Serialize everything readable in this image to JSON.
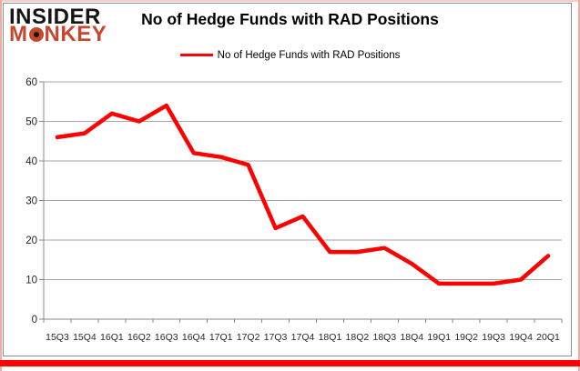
{
  "logo": {
    "insider": "INSIDER",
    "monkey": "MONKEY"
  },
  "header": {
    "title": "No of Hedge Funds with RAD Positions"
  },
  "legend": {
    "label": "No of Hedge Funds with RAD Positions",
    "marker_color": "#fe0000"
  },
  "chart_data": {
    "type": "line",
    "title": "No of Hedge Funds with RAD Positions",
    "categories": [
      "15Q3",
      "15Q4",
      "16Q1",
      "16Q2",
      "16Q3",
      "16Q4",
      "17Q1",
      "17Q2",
      "17Q3",
      "17Q4",
      "18Q1",
      "18Q2",
      "18Q3",
      "18Q4",
      "19Q1",
      "19Q2",
      "19Q3",
      "19Q4",
      "20Q1"
    ],
    "series": [
      {
        "name": "No of Hedge Funds with RAD Positions",
        "color": "#fe0000",
        "values": [
          46,
          47,
          52,
          50,
          54,
          42,
          41,
          39,
          23,
          26,
          17,
          17,
          18,
          14,
          9,
          9,
          9,
          10,
          16
        ]
      }
    ],
    "xlabel": "",
    "ylabel": "",
    "ylim": [
      0,
      60
    ],
    "yticks": [
      0,
      10,
      20,
      30,
      40,
      50,
      60
    ],
    "grid": true,
    "legend_position": "top-center"
  },
  "colors": {
    "series_line": "#fe0000",
    "bottom_bar": "#fe0000",
    "frame_edge_pink": "#f2aba4",
    "frame_edge_pink_light": "#f8ccc7",
    "chart_border_gray": "#8e8e8e",
    "gridline_gray": "#a6a6a6",
    "axis_gray": "#898989",
    "tick_text": "#262626",
    "logo_red": "#c7472e",
    "logo_black": "#151515"
  }
}
